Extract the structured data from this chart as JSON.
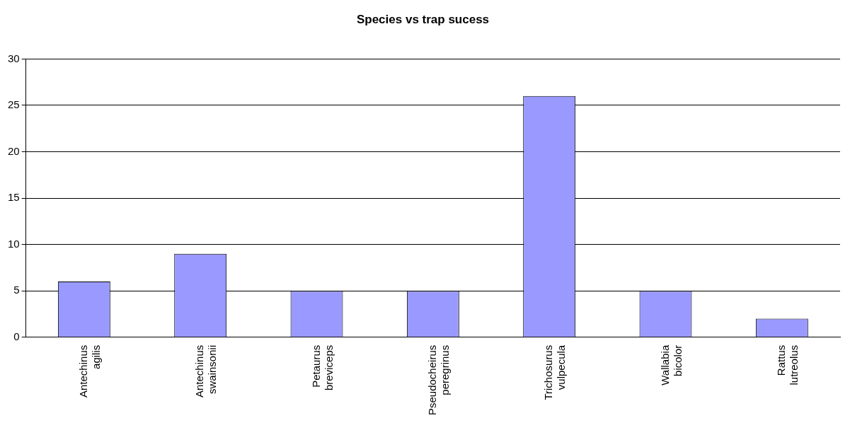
{
  "chart_data": {
    "type": "bar",
    "title": "Species vs trap sucess",
    "categories": [
      "Antechinus agilis",
      "Antechinus swainsonii",
      "Petaurus breviceps",
      "Pseudocheirus peregrinus",
      "Trichosurus vulpecula",
      "Wallabia bicolor",
      "Rattus lutreolus"
    ],
    "values": [
      6,
      9,
      5,
      5,
      26,
      5,
      2
    ],
    "color": "#9999ff",
    "ylim": [
      0,
      30
    ],
    "yticks": [
      0,
      5,
      10,
      15,
      20,
      25,
      30
    ],
    "grid": "y",
    "legend": false
  }
}
